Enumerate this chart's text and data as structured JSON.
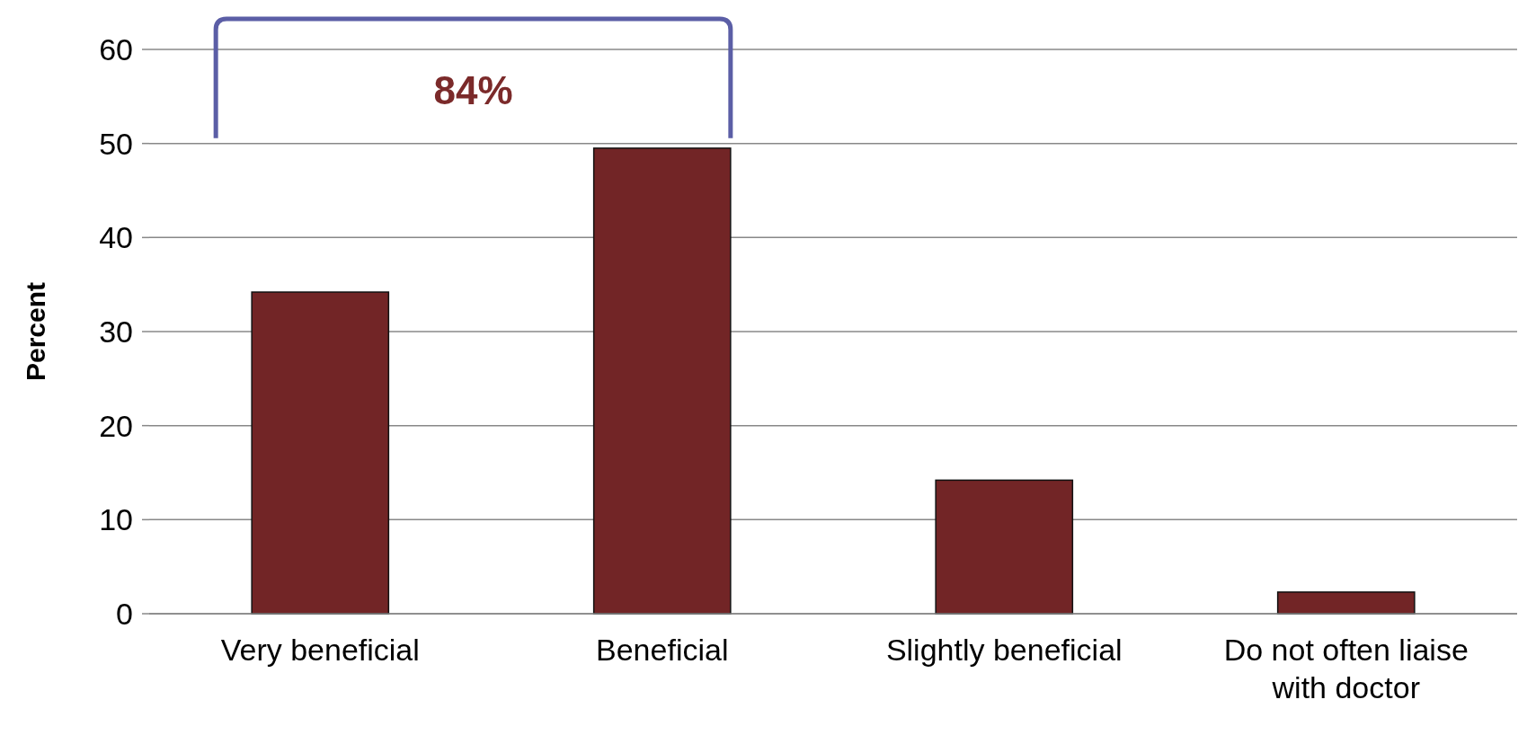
{
  "chart_data": {
    "type": "bar",
    "ylabel": "Percent",
    "categories": [
      "Very beneficial",
      "Beneficial",
      "Slightly beneficial",
      "Do not often liaise with doctor"
    ],
    "values": [
      34.2,
      49.5,
      14.2,
      2.3
    ],
    "color": "#722526",
    "ylim": [
      0,
      60
    ],
    "yticks": [
      0,
      10,
      20,
      30,
      40,
      50,
      60
    ],
    "grid": "y",
    "annotations": [
      "84%"
    ]
  }
}
